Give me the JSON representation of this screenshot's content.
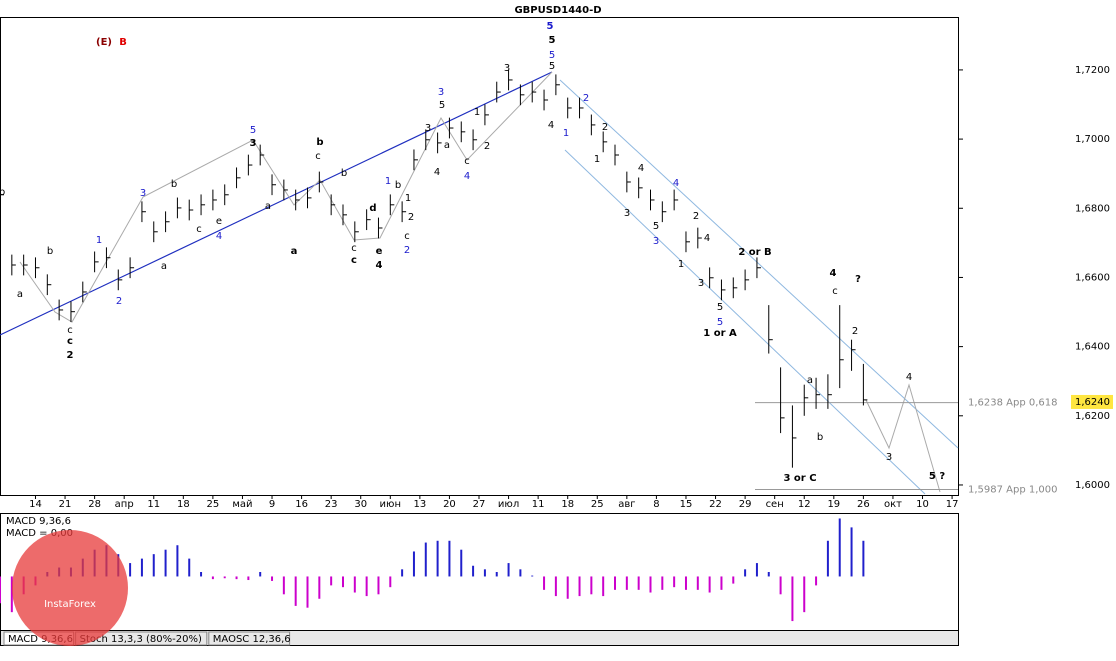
{
  "chart_data": [
    {
      "type": "ohlc",
      "title": "GBPUSD1440-D",
      "x": [
        0,
        2,
        4,
        6,
        8,
        10,
        12,
        14,
        16,
        18,
        20,
        22,
        24,
        26,
        28,
        30,
        32,
        34,
        36,
        38,
        40,
        42,
        44,
        46,
        48,
        50,
        52,
        54,
        56,
        58,
        60,
        62,
        64,
        66,
        68,
        70,
        72,
        74,
        76,
        78,
        80,
        82,
        84,
        86,
        88,
        90,
        92,
        94,
        96,
        98,
        100,
        102,
        104,
        106,
        108,
        110,
        112,
        114,
        116,
        118,
        120,
        122,
        124,
        126,
        128,
        130,
        132,
        134,
        136,
        138,
        140,
        142,
        144,
        146
      ],
      "high": [
        1.6869,
        1.6666,
        1.6666,
        1.6658,
        1.6609,
        1.6536,
        1.6531,
        1.6588,
        1.6675,
        1.6687,
        1.6623,
        1.6658,
        1.682,
        1.6762,
        1.6791,
        1.6831,
        1.6825,
        1.684,
        1.6854,
        1.6869,
        1.6918,
        1.6955,
        1.6984,
        1.6898,
        1.6883,
        1.6854,
        1.686,
        1.6906,
        1.684,
        1.6811,
        1.6762,
        1.6797,
        1.6773,
        1.684,
        1.682,
        1.697,
        1.7028,
        1.7019,
        1.7062,
        1.7051,
        1.7028,
        1.71,
        1.7166,
        1.7201,
        1.7158,
        1.7166,
        1.7143,
        1.7187,
        1.712,
        1.712,
        1.7071,
        1.7022,
        1.6984,
        1.6906,
        1.6889,
        1.6854,
        1.682,
        1.6854,
        1.6733,
        1.6744,
        1.6629,
        1.6594,
        1.66,
        1.6623,
        1.6658,
        1.652,
        1.634,
        1.623,
        1.629,
        1.631,
        1.632,
        1.652,
        1.642,
        1.635
      ],
      "low": [
        1.6809,
        1.6606,
        1.6606,
        1.6598,
        1.6549,
        1.6476,
        1.6471,
        1.6528,
        1.6615,
        1.6627,
        1.6563,
        1.6598,
        1.676,
        1.6702,
        1.6731,
        1.6771,
        1.6765,
        1.678,
        1.6794,
        1.6809,
        1.6858,
        1.6895,
        1.6924,
        1.6838,
        1.6823,
        1.6794,
        1.68,
        1.6846,
        1.678,
        1.6751,
        1.6702,
        1.6737,
        1.6713,
        1.678,
        1.676,
        1.691,
        1.6968,
        1.6959,
        1.7002,
        1.6991,
        1.6968,
        1.704,
        1.7106,
        1.7141,
        1.7098,
        1.7106,
        1.7083,
        1.7127,
        1.706,
        1.706,
        1.7011,
        1.6962,
        1.6924,
        1.6846,
        1.6829,
        1.6794,
        1.676,
        1.6794,
        1.6673,
        1.6684,
        1.6569,
        1.6534,
        1.654,
        1.6563,
        1.6598,
        1.638,
        1.615,
        1.605,
        1.62,
        1.622,
        1.622,
        1.628,
        1.633,
        1.623
      ],
      "close": [
        1.6839,
        1.6636,
        1.6636,
        1.6628,
        1.6579,
        1.6506,
        1.6501,
        1.6558,
        1.6645,
        1.6657,
        1.6593,
        1.6628,
        1.679,
        1.6732,
        1.6761,
        1.6801,
        1.6795,
        1.681,
        1.6824,
        1.6839,
        1.6888,
        1.6925,
        1.6954,
        1.6868,
        1.6853,
        1.6824,
        1.683,
        1.6876,
        1.681,
        1.6781,
        1.6732,
        1.6767,
        1.6743,
        1.681,
        1.679,
        1.694,
        1.6998,
        1.6989,
        1.7032,
        1.7021,
        1.6998,
        1.707,
        1.7136,
        1.7171,
        1.7128,
        1.7136,
        1.7113,
        1.7157,
        1.709,
        1.709,
        1.7041,
        1.6992,
        1.6954,
        1.6876,
        1.6859,
        1.6824,
        1.679,
        1.6824,
        1.6703,
        1.6714,
        1.6599,
        1.6564,
        1.657,
        1.6593,
        1.6628,
        1.642,
        1.6194,
        1.6136,
        1.6252,
        1.6261,
        1.6261,
        1.6362,
        1.6391,
        1.6246
      ],
      "color": "#000000",
      "xlim": [
        0,
        162
      ],
      "xticks": [
        {
          "value": 6,
          "label": "14"
        },
        {
          "value": 11,
          "label": "21"
        },
        {
          "value": 16,
          "label": "28"
        },
        {
          "value": 21,
          "label": "апр"
        },
        {
          "value": 26,
          "label": "11"
        },
        {
          "value": 31,
          "label": "18"
        },
        {
          "value": 36,
          "label": "25"
        },
        {
          "value": 41,
          "label": "май"
        },
        {
          "value": 46,
          "label": "9"
        },
        {
          "value": 51,
          "label": "16"
        },
        {
          "value": 56,
          "label": "23"
        },
        {
          "value": 61,
          "label": "30"
        },
        {
          "value": 66,
          "label": "июн"
        },
        {
          "value": 71,
          "label": "13"
        },
        {
          "value": 76,
          "label": "20"
        },
        {
          "value": 81,
          "label": "27"
        },
        {
          "value": 86,
          "label": "июл"
        },
        {
          "value": 91,
          "label": "11"
        },
        {
          "value": 96,
          "label": "18"
        },
        {
          "value": 101,
          "label": "25"
        },
        {
          "value": 106,
          "label": "авг"
        },
        {
          "value": 111,
          "label": "8"
        },
        {
          "value": 116,
          "label": "15"
        },
        {
          "value": 121,
          "label": "22"
        },
        {
          "value": 126,
          "label": "29"
        },
        {
          "value": 131,
          "label": "сен"
        },
        {
          "value": 136,
          "label": "12"
        },
        {
          "value": 141,
          "label": "19"
        },
        {
          "value": 146,
          "label": "26"
        },
        {
          "value": 151,
          "label": "окт"
        },
        {
          "value": 156,
          "label": "10"
        },
        {
          "value": 161,
          "label": "17"
        }
      ],
      "ylim": [
        1.5971,
        1.7353
      ],
      "yticks": [
        {
          "value": 1.6,
          "label": "1,6000"
        },
        {
          "value": 1.62,
          "label": "1,6200"
        },
        {
          "value": 1.64,
          "label": "1,6400"
        },
        {
          "value": 1.66,
          "label": "1,6600"
        },
        {
          "value": 1.68,
          "label": "1,6800"
        },
        {
          "value": 1.7,
          "label": "1,7000"
        },
        {
          "value": 1.72,
          "label": "1,7200"
        }
      ],
      "last_price": {
        "value": 1.624,
        "label": "1,6240"
      },
      "levels": [
        {
          "value": 1.6238,
          "label": "1,6238 App 0,618"
        },
        {
          "value": 1.5987,
          "label": "1,5987 App 1,000"
        }
      ],
      "annotations": [
        {
          "text": "5",
          "color": "#1a1acc"
        },
        {
          "text": "5",
          "color": "#000000"
        },
        {
          "text": "5",
          "color": "#1a1acc"
        },
        {
          "text": "5",
          "color": "#000000"
        },
        {
          "text": "3",
          "color": "#000000"
        },
        {
          "text": "3",
          "color": "#000000"
        },
        {
          "text": "5",
          "color": "#1a1acc"
        },
        {
          "text": "b",
          "color": "#000000"
        },
        {
          "text": "c",
          "color": "#000000"
        },
        {
          "text": "b",
          "color": "#000000"
        },
        {
          "text": "d",
          "color": "#000000"
        },
        {
          "text": "e",
          "color": "#000000"
        },
        {
          "text": "4",
          "color": "#000000"
        },
        {
          "text": "a",
          "color": "#000000"
        },
        {
          "text": "c",
          "color": "#000000"
        },
        {
          "text": "c",
          "color": "#000000"
        },
        {
          "text": "1",
          "color": "#1a1acc"
        },
        {
          "text": "b",
          "color": "#000000"
        },
        {
          "text": "1",
          "color": "#000000"
        },
        {
          "text": "2",
          "color": "#000000"
        },
        {
          "text": "c",
          "color": "#000000"
        },
        {
          "text": "2",
          "color": "#1a1acc"
        },
        {
          "text": "3",
          "color": "#1a1acc"
        },
        {
          "text": "5",
          "color": "#000000"
        },
        {
          "text": "3",
          "color": "#000000"
        },
        {
          "text": "1",
          "color": "#000000"
        },
        {
          "text": "a",
          "color": "#000000"
        },
        {
          "text": "4",
          "color": "#000000"
        },
        {
          "text": "c",
          "color": "#000000"
        },
        {
          "text": "4",
          "color": "#1a1acc"
        },
        {
          "text": "2",
          "color": "#000000"
        },
        {
          "text": "4",
          "color": "#000000"
        },
        {
          "text": "1",
          "color": "#1a1acc"
        },
        {
          "text": "2",
          "color": "#1a1acc"
        },
        {
          "text": "2",
          "color": "#000000"
        },
        {
          "text": "1",
          "color": "#000000"
        },
        {
          "text": "4",
          "color": "#000000"
        },
        {
          "text": "3",
          "color": "#000000"
        },
        {
          "text": "4",
          "color": "#1a1acc"
        },
        {
          "text": "2",
          "color": "#000000"
        },
        {
          "text": "5",
          "color": "#000000"
        },
        {
          "text": "3",
          "color": "#1a1acc"
        },
        {
          "text": "4",
          "color": "#000000"
        },
        {
          "text": "1",
          "color": "#000000"
        },
        {
          "text": "3",
          "color": "#000000"
        },
        {
          "text": "5",
          "color": "#000000"
        },
        {
          "text": "5",
          "color": "#1a1acc"
        },
        {
          "text": "1 or A",
          "color": "#000000"
        },
        {
          "text": "2 or B",
          "color": "#000000"
        },
        {
          "text": "4",
          "color": "#000000"
        },
        {
          "text": "?",
          "color": "#000000"
        },
        {
          "text": "c",
          "color": "#000000"
        },
        {
          "text": "2",
          "color": "#000000"
        },
        {
          "text": "a",
          "color": "#000000"
        },
        {
          "text": "b",
          "color": "#000000"
        },
        {
          "text": "3 or C",
          "color": "#000000"
        },
        {
          "text": "3",
          "color": "#000000"
        },
        {
          "text": "4",
          "color": "#000000"
        },
        {
          "text": "5 ?",
          "color": "#000000"
        },
        {
          "text": "3",
          "color": "#1a1acc"
        },
        {
          "text": "1",
          "color": "#1a1acc"
        },
        {
          "text": "2",
          "color": "#1a1acc"
        },
        {
          "text": "b",
          "color": "#000000"
        },
        {
          "text": "a",
          "color": "#000000"
        },
        {
          "text": "c",
          "color": "#000000"
        },
        {
          "text": "c",
          "color": "#000000"
        },
        {
          "text": "2",
          "color": "#000000"
        },
        {
          "text": "b",
          "color": "#000000"
        },
        {
          "text": "a",
          "color": "#000000"
        },
        {
          "text": "c",
          "color": "#000000"
        },
        {
          "text": "4",
          "color": "#1a1acc"
        },
        {
          "text": "e",
          "color": "#000000"
        },
        {
          "text": "a",
          "color": "#000000"
        },
        {
          "text": "b",
          "color": "#000000"
        },
        {
          "text": "(E)",
          "color": "#8b0000"
        },
        {
          "text": "B",
          "color": "#e00000"
        }
      ]
    },
    {
      "type": "histogram",
      "title": "MACD 9,36,6",
      "label": "MACD = 0,00",
      "x": [
        0,
        2,
        4,
        6,
        8,
        10,
        12,
        14,
        16,
        18,
        20,
        22,
        24,
        26,
        28,
        30,
        32,
        34,
        36,
        38,
        40,
        42,
        44,
        46,
        48,
        50,
        52,
        54,
        56,
        58,
        60,
        62,
        64,
        66,
        68,
        70,
        72,
        74,
        76,
        78,
        80,
        82,
        84,
        86,
        88,
        90,
        92,
        94,
        96,
        98,
        100,
        102,
        104,
        106,
        108,
        110,
        112,
        114,
        116,
        118,
        120,
        122,
        124,
        126,
        128,
        130,
        132,
        134,
        136,
        138,
        140,
        142,
        144,
        146
      ],
      "values": [
        -0.003,
        -0.004,
        -0.002,
        -0.001,
        0.0005,
        0.001,
        0.001,
        0.002,
        0.003,
        0.0035,
        0.0025,
        0.0015,
        0.002,
        0.0025,
        0.003,
        0.0035,
        0.002,
        0.0005,
        -0.0003,
        -0.0002,
        -0.0003,
        -0.0004,
        0.0005,
        -0.0005,
        -0.002,
        -0.0033,
        -0.0035,
        -0.0025,
        -0.001,
        -0.0012,
        -0.0018,
        -0.0022,
        -0.002,
        -0.0012,
        0.0008,
        0.0028,
        0.0038,
        0.004,
        0.004,
        0.003,
        0.0012,
        0.0008,
        0.0005,
        0.0015,
        0.0008,
        0.0001,
        -0.0015,
        -0.0022,
        -0.0025,
        -0.0022,
        -0.002,
        -0.0022,
        -0.0015,
        -0.0015,
        -0.0015,
        -0.0018,
        -0.0015,
        -0.0012,
        -0.0015,
        -0.0015,
        -0.0018,
        -0.0015,
        -0.0008,
        0.0008,
        0.0015,
        0.0005,
        -0.002,
        -0.005,
        -0.004,
        -0.001,
        0.004,
        0.0065,
        0.0055,
        0.004
      ],
      "color_positive": "#2020cc",
      "color_negative": "#cc00cc",
      "xlim": [
        0,
        162
      ],
      "ylim": [
        -0.006,
        0.007
      ]
    }
  ],
  "indicator_tabs": [
    "MACD 9,36,6",
    "Stoch 13,3,3 (80%-20%)",
    "MAOSC 12,36,6"
  ],
  "watermark": "InstaForex"
}
